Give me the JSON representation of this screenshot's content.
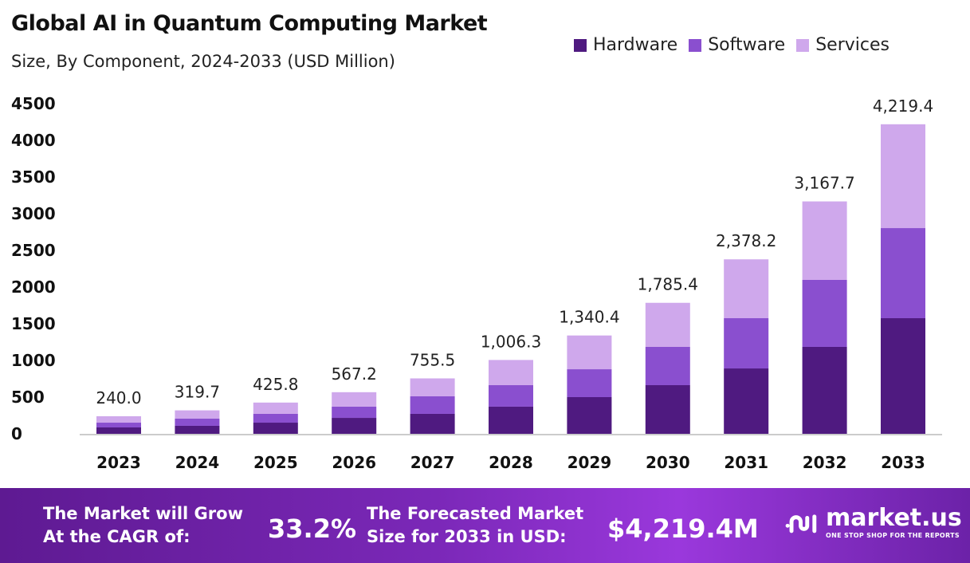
{
  "chart_data": {
    "type": "bar",
    "stacked": true,
    "title": "Global AI in Quantum Computing Market",
    "subtitle": "Size, By Component, 2024-2033 (USD Million)",
    "categories": [
      "2023",
      "2024",
      "2025",
      "2026",
      "2027",
      "2028",
      "2029",
      "2030",
      "2031",
      "2032",
      "2033"
    ],
    "series": [
      {
        "name": "Hardware",
        "color": "#4f1a80",
        "values": [
          87,
          109,
          152,
          217,
          272,
          370,
          500,
          663,
          891,
          1185,
          1576
        ]
      },
      {
        "name": "Software",
        "color": "#8a4fcf",
        "values": [
          65,
          98,
          120,
          153,
          239,
          293,
          380,
          522,
          685,
          913,
          1228
        ]
      },
      {
        "name": "Services",
        "color": "#cfa8ec",
        "values": [
          88,
          112.7,
          153.8,
          197.2,
          244.5,
          343.3,
          460.4,
          600.4,
          802.2,
          1069.7,
          1415.4
        ]
      }
    ],
    "totals": [
      "240.0",
      "319.7",
      "425.8",
      "567.2",
      "755.5",
      "1,006.3",
      "1,340.4",
      "1,785.4",
      "2,378.2",
      "3,167.7",
      "4,219.4"
    ],
    "yticks": [
      0,
      500,
      1000,
      1500,
      2000,
      2500,
      3000,
      3500,
      4000,
      4500
    ],
    "ylim": [
      0,
      4500
    ],
    "grid": false,
    "legend": "top-right",
    "xlabel": "",
    "ylabel": ""
  },
  "banner": {
    "cagr_label_1": "The Market will Grow",
    "cagr_label_2": "At the CAGR of:",
    "cagr_value": "33.2%",
    "forecast_label_1": "The Forecasted Market",
    "forecast_label_2": "Size for 2033 in USD:",
    "forecast_value": "$4,219.4M",
    "logo_name": "market.us",
    "logo_tagline": "ONE STOP SHOP FOR THE REPORTS"
  }
}
